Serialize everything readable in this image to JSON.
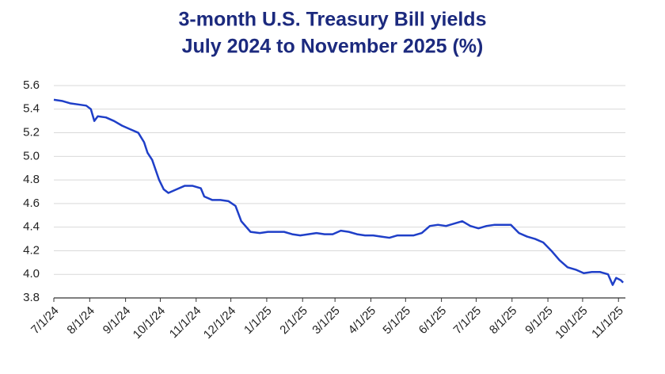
{
  "chart_data": {
    "type": "line",
    "title": "3-month U.S. Treasury Bill yields",
    "subtitle": "July 2024 to November 2025 (%)",
    "x": [
      "2024-07-01",
      "2024-07-08",
      "2024-07-15",
      "2024-07-22",
      "2024-07-29",
      "2024-08-02",
      "2024-08-05",
      "2024-08-08",
      "2024-08-15",
      "2024-08-22",
      "2024-08-29",
      "2024-09-05",
      "2024-09-12",
      "2024-09-17",
      "2024-09-20",
      "2024-09-24",
      "2024-09-30",
      "2024-10-04",
      "2024-10-08",
      "2024-10-15",
      "2024-10-22",
      "2024-10-29",
      "2024-11-05",
      "2024-11-08",
      "2024-11-15",
      "2024-11-22",
      "2024-11-29",
      "2024-12-05",
      "2024-12-10",
      "2024-12-18",
      "2024-12-26",
      "2025-01-02",
      "2025-01-09",
      "2025-01-16",
      "2025-01-23",
      "2025-01-30",
      "2025-02-06",
      "2025-02-13",
      "2025-02-20",
      "2025-02-27",
      "2025-03-06",
      "2025-03-13",
      "2025-03-20",
      "2025-03-27",
      "2025-04-03",
      "2025-04-10",
      "2025-04-17",
      "2025-04-24",
      "2025-05-01",
      "2025-05-08",
      "2025-05-15",
      "2025-05-22",
      "2025-05-29",
      "2025-06-05",
      "2025-06-12",
      "2025-06-19",
      "2025-06-26",
      "2025-07-03",
      "2025-07-10",
      "2025-07-17",
      "2025-07-24",
      "2025-07-31",
      "2025-08-07",
      "2025-08-14",
      "2025-08-21",
      "2025-08-28",
      "2025-09-04",
      "2025-09-11",
      "2025-09-18",
      "2025-09-25",
      "2025-10-02",
      "2025-10-09",
      "2025-10-16",
      "2025-10-23",
      "2025-10-27",
      "2025-10-30",
      "2025-11-03",
      "2025-11-05"
    ],
    "values": [
      5.48,
      5.47,
      5.45,
      5.44,
      5.43,
      5.4,
      5.3,
      5.34,
      5.33,
      5.3,
      5.26,
      5.23,
      5.2,
      5.12,
      5.03,
      4.97,
      4.8,
      4.72,
      4.69,
      4.72,
      4.75,
      4.75,
      4.73,
      4.66,
      4.63,
      4.63,
      4.62,
      4.58,
      4.45,
      4.36,
      4.35,
      4.36,
      4.36,
      4.36,
      4.34,
      4.33,
      4.34,
      4.35,
      4.34,
      4.34,
      4.37,
      4.36,
      4.34,
      4.33,
      4.33,
      4.32,
      4.31,
      4.33,
      4.33,
      4.33,
      4.35,
      4.41,
      4.42,
      4.41,
      4.43,
      4.45,
      4.41,
      4.39,
      4.41,
      4.42,
      4.42,
      4.42,
      4.35,
      4.32,
      4.3,
      4.27,
      4.2,
      4.12,
      4.06,
      4.04,
      4.01,
      4.02,
      4.02,
      4.0,
      3.91,
      3.97,
      3.95,
      3.93
    ],
    "color": "#1f3fc8",
    "xlim": [
      "2024-07-01",
      "2025-11-07"
    ],
    "xticks": [
      {
        "value": "2024-07-01",
        "label": "7/1/24"
      },
      {
        "value": "2024-08-01",
        "label": "8/1/24"
      },
      {
        "value": "2024-09-01",
        "label": "9/1/24"
      },
      {
        "value": "2024-10-01",
        "label": "10/1/24"
      },
      {
        "value": "2024-11-01",
        "label": "11/1/24"
      },
      {
        "value": "2024-12-01",
        "label": "12/1/24"
      },
      {
        "value": "2025-01-01",
        "label": "1/1/25"
      },
      {
        "value": "2025-02-01",
        "label": "2/1/25"
      },
      {
        "value": "2025-03-01",
        "label": "3/1/25"
      },
      {
        "value": "2025-04-01",
        "label": "4/1/25"
      },
      {
        "value": "2025-05-01",
        "label": "5/1/25"
      },
      {
        "value": "2025-06-01",
        "label": "6/1/25"
      },
      {
        "value": "2025-07-01",
        "label": "7/1/25"
      },
      {
        "value": "2025-08-01",
        "label": "8/1/25"
      },
      {
        "value": "2025-09-01",
        "label": "9/1/25"
      },
      {
        "value": "2025-10-01",
        "label": "10/1/25"
      },
      {
        "value": "2025-11-01",
        "label": "11/1/25"
      }
    ],
    "ylim": [
      3.8,
      5.6
    ],
    "yticks": [
      3.8,
      {
        "value": 4,
        "label": "4.0"
      },
      4.2,
      4.4,
      4.6,
      4.8,
      {
        "value": 5,
        "label": "5.0"
      },
      5.2,
      5.4,
      5.6
    ],
    "grid": true
  }
}
